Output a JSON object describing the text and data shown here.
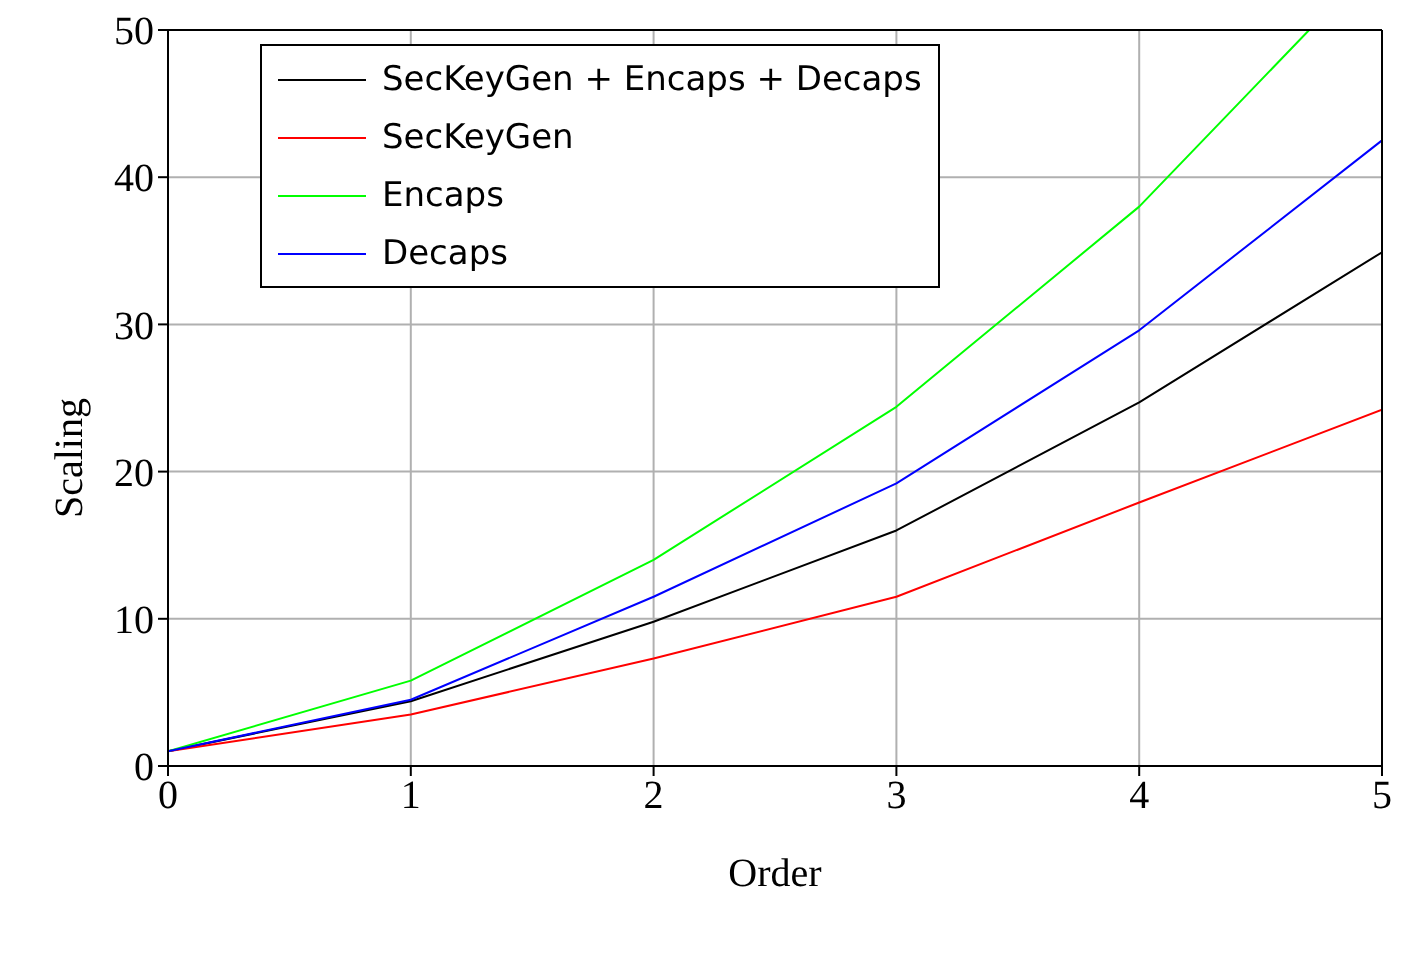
{
  "chart_data": {
    "type": "line",
    "xlabel": "Order",
    "ylabel": "Scaling",
    "x": [
      0,
      1,
      2,
      3,
      4,
      5
    ],
    "xlim": [
      0,
      5
    ],
    "ylim": [
      0,
      50
    ],
    "xticks": [
      0,
      1,
      2,
      3,
      4,
      5
    ],
    "yticks": [
      0,
      10,
      20,
      30,
      40,
      50
    ],
    "grid": true,
    "legend": "top left",
    "marker": "none",
    "line_style": "solid",
    "series": [
      {
        "name": "SecKeyGen + Encaps + Decaps",
        "color": "#000000",
        "values": [
          1,
          4.4,
          9.8,
          16.0,
          24.7,
          34.9
        ]
      },
      {
        "name": "SecKeyGen",
        "color": "#ff0000",
        "values": [
          1,
          3.5,
          7.3,
          11.5,
          17.9,
          24.2
        ]
      },
      {
        "name": "Encaps",
        "color": "#00ff00",
        "x": [
          0,
          1,
          2,
          3,
          4,
          4.7
        ],
        "values": [
          1,
          5.8,
          14.0,
          24.4,
          38.0,
          50
        ]
      },
      {
        "name": "Decaps",
        "color": "#0000ff",
        "values": [
          1,
          4.5,
          11.5,
          19.2,
          29.6,
          42.5
        ]
      }
    ]
  }
}
